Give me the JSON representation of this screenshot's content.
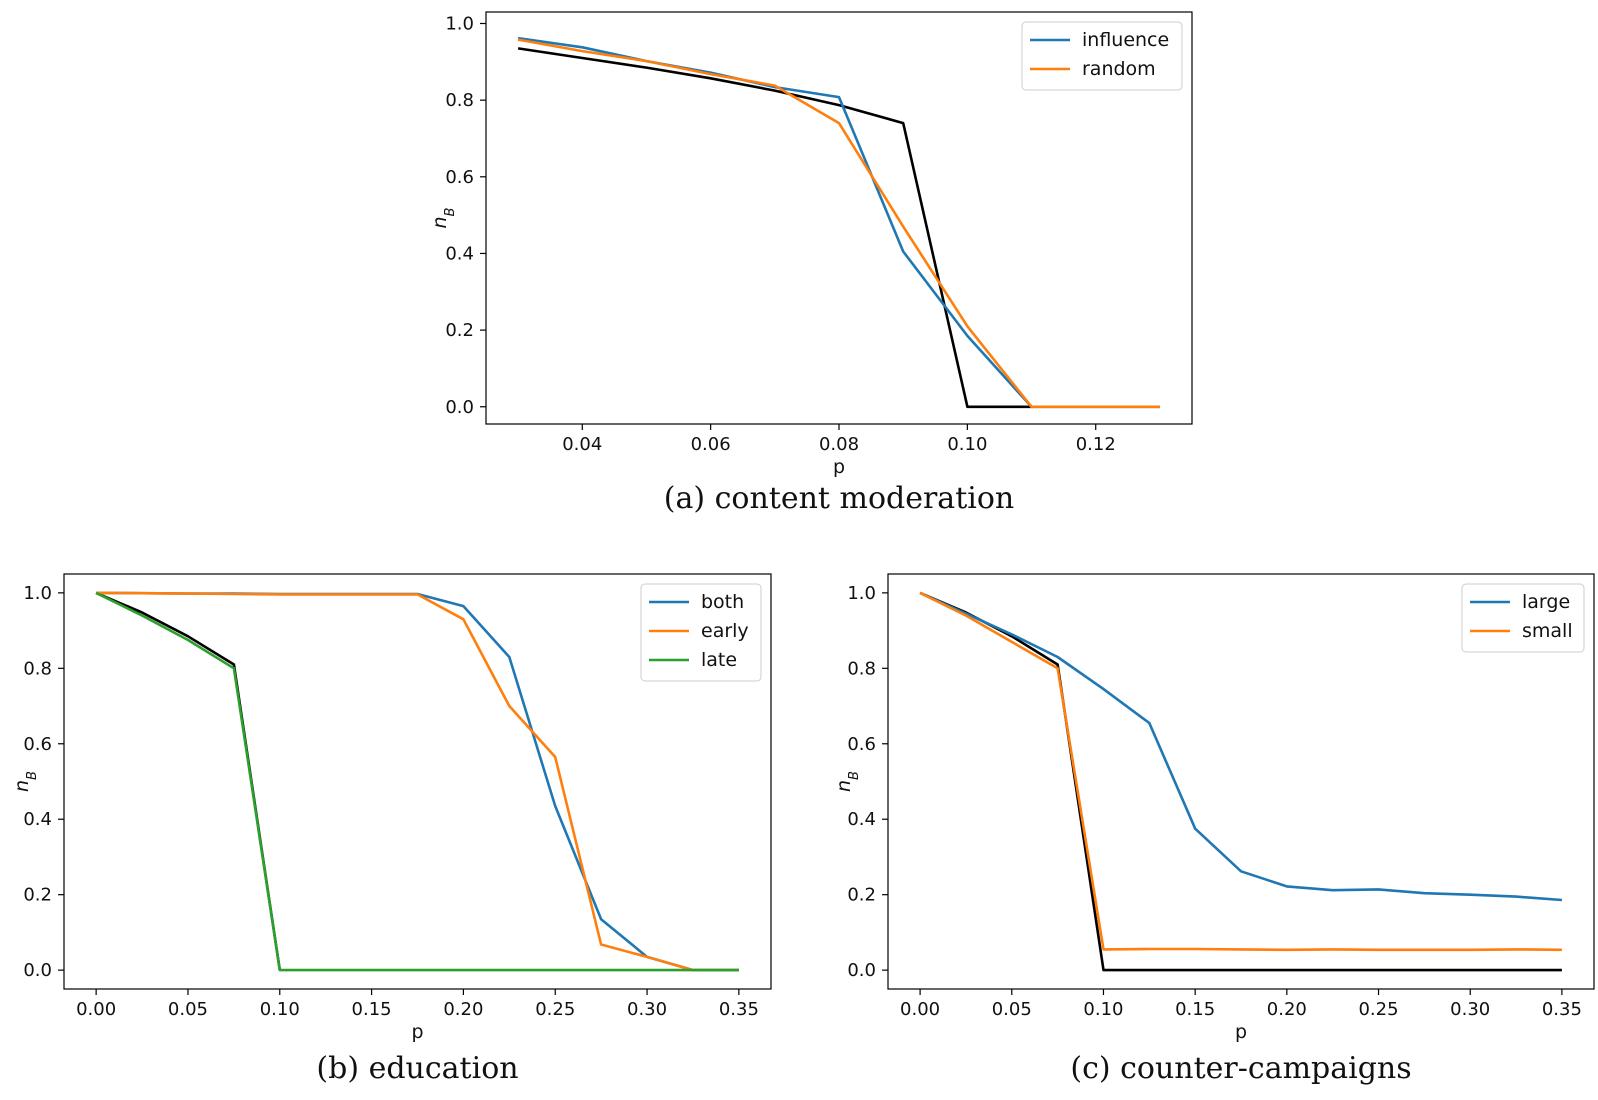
{
  "chart_data": [
    {
      "type": "line",
      "caption": "(a) content moderation",
      "xlabel": "p",
      "ylabel": "n_B",
      "xlim": [
        0.025,
        0.135
      ],
      "ylim": [
        -0.045,
        1.03
      ],
      "xticks": [
        "0.04",
        "0.06",
        "0.08",
        "0.10",
        "0.12"
      ],
      "yticks": [
        "0.0",
        "0.2",
        "0.4",
        "0.6",
        "0.8",
        "1.0"
      ],
      "grid": false,
      "legend_position": "upper right",
      "series": [
        {
          "name": "",
          "color": "#000000",
          "x": [
            0.03,
            0.04,
            0.05,
            0.06,
            0.07,
            0.08,
            0.09,
            0.1,
            0.11
          ],
          "y": [
            0.935,
            0.91,
            0.885,
            0.857,
            0.825,
            0.787,
            0.74,
            0.0,
            0.0
          ]
        },
        {
          "name": "influence",
          "color": "#1f77b4",
          "x": [
            0.03,
            0.04,
            0.05,
            0.06,
            0.07,
            0.08,
            0.09,
            0.1,
            0.11,
            0.12,
            0.13
          ],
          "y": [
            0.962,
            0.938,
            0.902,
            0.872,
            0.834,
            0.808,
            0.405,
            0.185,
            0.0,
            0.0,
            0.0
          ]
        },
        {
          "name": "random",
          "color": "#ff7f0e",
          "x": [
            0.03,
            0.04,
            0.05,
            0.06,
            0.07,
            0.08,
            0.09,
            0.1,
            0.11,
            0.12,
            0.13
          ],
          "y": [
            0.958,
            0.928,
            0.902,
            0.868,
            0.838,
            0.74,
            0.47,
            0.21,
            0.0,
            0.0,
            0.0
          ]
        }
      ]
    },
    {
      "type": "line",
      "caption": "(b) education",
      "xlabel": "p",
      "ylabel": "n_B",
      "xlim": [
        -0.0175,
        0.3675
      ],
      "ylim": [
        -0.05,
        1.05
      ],
      "xticks": [
        "0.00",
        "0.05",
        "0.10",
        "0.15",
        "0.20",
        "0.25",
        "0.30",
        "0.35"
      ],
      "yticks": [
        "0.0",
        "0.2",
        "0.4",
        "0.6",
        "0.8",
        "1.0"
      ],
      "grid": false,
      "legend_position": "upper right",
      "series": [
        {
          "name": "",
          "color": "#000000",
          "x": [
            0.0,
            0.025,
            0.05,
            0.075,
            0.1
          ],
          "y": [
            1.0,
            0.948,
            0.885,
            0.81,
            0.0
          ]
        },
        {
          "name": "both",
          "color": "#1f77b4",
          "x": [
            0.0,
            0.025,
            0.05,
            0.075,
            0.1,
            0.125,
            0.15,
            0.175,
            0.2,
            0.225,
            0.25,
            0.275,
            0.3,
            0.325,
            0.35
          ],
          "y": [
            1.0,
            0.999,
            0.998,
            0.998,
            0.997,
            0.997,
            0.997,
            0.997,
            0.965,
            0.83,
            0.435,
            0.135,
            0.035,
            0.0,
            0.0
          ]
        },
        {
          "name": "early",
          "color": "#ff7f0e",
          "x": [
            0.0,
            0.025,
            0.05,
            0.075,
            0.1,
            0.125,
            0.15,
            0.175,
            0.2,
            0.225,
            0.25,
            0.275,
            0.3,
            0.325,
            0.35
          ],
          "y": [
            1.0,
            0.999,
            0.998,
            0.997,
            0.996,
            0.996,
            0.996,
            0.996,
            0.93,
            0.7,
            0.565,
            0.068,
            0.035,
            0.0,
            0.0
          ]
        },
        {
          "name": "late",
          "color": "#2ca02c",
          "x": [
            0.0,
            0.025,
            0.05,
            0.075,
            0.1,
            0.125,
            0.15,
            0.175,
            0.2,
            0.225,
            0.25,
            0.275,
            0.3,
            0.325,
            0.35
          ],
          "y": [
            1.0,
            0.94,
            0.875,
            0.8,
            0.0,
            0.0,
            0.0,
            0.0,
            0.0,
            0.0,
            0.0,
            0.0,
            0.0,
            0.0,
            0.0
          ]
        }
      ]
    },
    {
      "type": "line",
      "caption": "(c) counter-campaigns",
      "xlabel": "p",
      "ylabel": "n_B",
      "xlim": [
        -0.0175,
        0.3675
      ],
      "ylim": [
        -0.05,
        1.05
      ],
      "xticks": [
        "0.00",
        "0.05",
        "0.10",
        "0.15",
        "0.20",
        "0.25",
        "0.30",
        "0.35"
      ],
      "yticks": [
        "0.0",
        "0.2",
        "0.4",
        "0.6",
        "0.8",
        "1.0"
      ],
      "grid": false,
      "legend_position": "upper right",
      "series": [
        {
          "name": "",
          "color": "#000000",
          "x": [
            0.0,
            0.025,
            0.05,
            0.075,
            0.1,
            0.125,
            0.15,
            0.175,
            0.2,
            0.225,
            0.25,
            0.275,
            0.3,
            0.325,
            0.35
          ],
          "y": [
            1.0,
            0.948,
            0.885,
            0.81,
            0.0,
            0.0,
            0.0,
            0.0,
            0.0,
            0.0,
            0.0,
            0.0,
            0.0,
            0.0,
            0.0
          ]
        },
        {
          "name": "large",
          "color": "#1f77b4",
          "x": [
            0.0,
            0.025,
            0.05,
            0.075,
            0.1,
            0.125,
            0.15,
            0.175,
            0.2,
            0.225,
            0.25,
            0.275,
            0.3,
            0.325,
            0.35
          ],
          "y": [
            1.0,
            0.945,
            0.89,
            0.83,
            0.745,
            0.655,
            0.375,
            0.262,
            0.222,
            0.212,
            0.214,
            0.204,
            0.2,
            0.195,
            0.186
          ]
        },
        {
          "name": "small",
          "color": "#ff7f0e",
          "x": [
            0.0,
            0.025,
            0.05,
            0.075,
            0.1,
            0.125,
            0.15,
            0.175,
            0.2,
            0.225,
            0.25,
            0.275,
            0.3,
            0.325,
            0.35
          ],
          "y": [
            1.0,
            0.94,
            0.87,
            0.8,
            0.055,
            0.056,
            0.056,
            0.055,
            0.054,
            0.055,
            0.054,
            0.054,
            0.054,
            0.055,
            0.054
          ]
        }
      ]
    }
  ]
}
